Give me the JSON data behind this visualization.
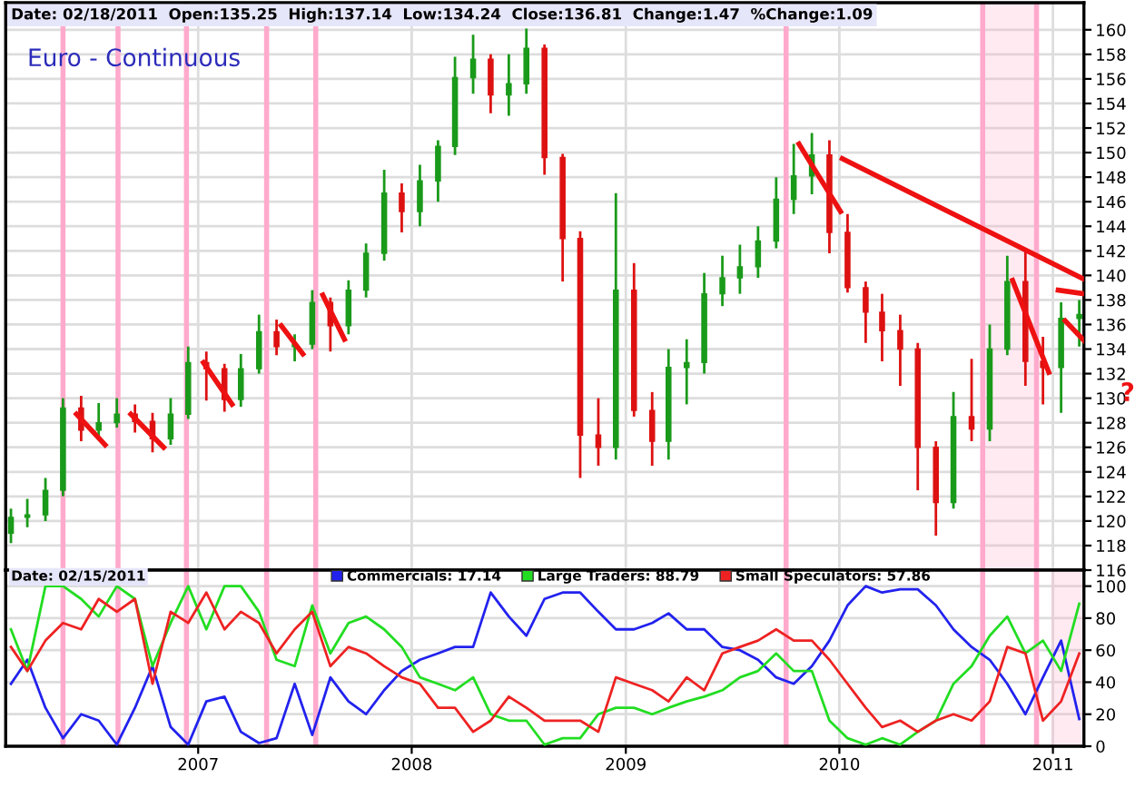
{
  "chart_data": [
    {
      "type": "candlestick",
      "title": "Euro - Continuous",
      "annotations": [
        "Date: 02/18/2011  Open:135.25  High:137.14  Low:134.24  Close:136.81  Change:1.47  %Change:1.09",
        "?"
      ],
      "x": [
        "2006-02-15",
        "2006-03-15",
        "2006-04-15",
        "2006-05-15",
        "2006-06-15",
        "2006-07-15",
        "2006-08-15",
        "2006-09-15",
        "2006-10-15",
        "2006-11-15",
        "2006-12-15",
        "2007-01-15",
        "2007-02-15",
        "2007-03-15",
        "2007-04-15",
        "2007-05-15",
        "2007-06-15",
        "2007-07-15",
        "2007-08-15",
        "2007-09-15",
        "2007-10-15",
        "2007-11-15",
        "2007-12-15",
        "2008-01-15",
        "2008-02-15",
        "2008-03-15",
        "2008-04-15",
        "2008-05-15",
        "2008-06-15",
        "2008-07-15",
        "2008-08-15",
        "2008-09-15",
        "2008-10-15",
        "2008-11-15",
        "2008-12-15",
        "2009-01-15",
        "2009-02-15",
        "2009-03-15",
        "2009-04-15",
        "2009-05-15",
        "2009-06-15",
        "2009-07-15",
        "2009-08-15",
        "2009-09-15",
        "2009-10-15",
        "2009-11-15",
        "2009-12-15",
        "2010-01-15",
        "2010-02-15",
        "2010-03-15",
        "2010-04-15",
        "2010-05-15",
        "2010-06-15",
        "2010-07-15",
        "2010-08-15",
        "2010-09-15",
        "2010-10-15",
        "2010-11-15",
        "2010-12-15",
        "2011-01-15",
        "2011-02-15"
      ],
      "ohlc": [
        [
          119.0,
          121.0,
          118.2,
          120.3
        ],
        [
          120.3,
          121.8,
          119.5,
          120.5
        ],
        [
          120.5,
          123.5,
          120.0,
          122.5
        ],
        [
          122.5,
          130.0,
          122.0,
          129.2
        ],
        [
          129.2,
          130.2,
          126.5,
          127.4
        ],
        [
          127.4,
          129.6,
          126.8,
          128.0
        ],
        [
          128.0,
          130.0,
          127.6,
          128.7
        ],
        [
          128.7,
          129.5,
          127.2,
          128.1
        ],
        [
          128.1,
          128.8,
          125.6,
          126.7
        ],
        [
          126.7,
          130.0,
          126.2,
          128.7
        ],
        [
          128.7,
          134.2,
          128.3,
          132.9
        ],
        [
          132.9,
          133.8,
          129.8,
          132.4
        ],
        [
          132.4,
          132.8,
          128.9,
          129.9
        ],
        [
          129.9,
          133.6,
          129.3,
          132.4
        ],
        [
          132.4,
          136.8,
          132.0,
          135.4
        ],
        [
          135.4,
          136.4,
          133.5,
          134.2
        ],
        [
          134.2,
          135.2,
          133.0,
          134.4
        ],
        [
          134.4,
          138.8,
          134.0,
          137.8
        ],
        [
          137.8,
          138.2,
          133.8,
          135.9
        ],
        [
          135.9,
          139.6,
          135.2,
          138.8
        ],
        [
          138.8,
          142.6,
          138.2,
          141.8
        ],
        [
          141.8,
          148.6,
          141.2,
          146.7
        ],
        [
          146.7,
          147.5,
          143.5,
          145.2
        ],
        [
          145.2,
          149.0,
          144.0,
          147.7
        ],
        [
          147.7,
          151.0,
          146.0,
          150.5
        ],
        [
          150.5,
          157.8,
          149.8,
          156.1
        ],
        [
          156.1,
          159.6,
          154.8,
          157.6
        ],
        [
          157.6,
          158.0,
          153.2,
          154.7
        ],
        [
          154.7,
          158.0,
          153.0,
          155.6
        ],
        [
          155.6,
          160.1,
          154.8,
          158.5
        ],
        [
          158.5,
          158.8,
          148.2,
          149.6
        ],
        [
          149.6,
          149.9,
          139.5,
          143.0
        ],
        [
          143.0,
          143.6,
          123.5,
          127.0
        ],
        [
          127.0,
          130.0,
          124.5,
          126.0
        ],
        [
          126.0,
          146.7,
          125.0,
          138.8
        ],
        [
          138.8,
          141.0,
          128.5,
          129.0
        ],
        [
          129.0,
          130.5,
          124.5,
          126.5
        ],
        [
          126.5,
          134.0,
          125.0,
          132.5
        ],
        [
          132.5,
          134.8,
          129.5,
          132.9
        ],
        [
          132.9,
          140.2,
          132.0,
          138.5
        ],
        [
          138.5,
          141.6,
          137.5,
          139.8
        ],
        [
          139.8,
          142.5,
          138.5,
          140.7
        ],
        [
          140.7,
          144.0,
          139.8,
          142.8
        ],
        [
          142.8,
          148.0,
          142.2,
          146.2
        ],
        [
          146.2,
          150.7,
          145.0,
          148.1
        ],
        [
          148.1,
          151.6,
          146.6,
          149.8
        ],
        [
          149.8,
          151.0,
          141.8,
          143.5
        ],
        [
          143.5,
          145.0,
          138.6,
          139.0
        ],
        [
          139.0,
          139.5,
          134.5,
          137.0
        ],
        [
          137.0,
          138.5,
          133.0,
          135.5
        ],
        [
          135.5,
          136.8,
          131.0,
          134.0
        ],
        [
          134.0,
          134.5,
          122.5,
          126.0
        ],
        [
          126.0,
          126.5,
          118.8,
          121.5
        ],
        [
          121.5,
          130.5,
          121.0,
          128.5
        ],
        [
          128.5,
          133.2,
          126.5,
          127.5
        ],
        [
          127.5,
          136.0,
          126.5,
          134.0
        ],
        [
          134.0,
          141.6,
          133.5,
          139.5
        ],
        [
          139.5,
          142.2,
          131.0,
          133.0
        ],
        [
          133.0,
          135.0,
          129.5,
          132.5
        ],
        [
          132.5,
          137.8,
          128.8,
          136.5
        ],
        [
          136.5,
          138.0,
          134.2,
          136.81
        ]
      ],
      "colors": [
        "#1a9a1a",
        "#1a9a1a",
        "#1a9a1a",
        "#1a9a1a",
        "#dd1111",
        "#1a9a1a",
        "#1a9a1a",
        "#dd1111",
        "#dd1111",
        "#1a9a1a",
        "#1a9a1a",
        "#dd1111",
        "#dd1111",
        "#1a9a1a",
        "#1a9a1a",
        "#dd1111",
        "#1a9a1a",
        "#1a9a1a",
        "#dd1111",
        "#1a9a1a",
        "#1a9a1a",
        "#1a9a1a",
        "#dd1111",
        "#1a9a1a",
        "#1a9a1a",
        "#1a9a1a",
        "#1a9a1a",
        "#dd1111",
        "#1a9a1a",
        "#1a9a1a",
        "#dd1111",
        "#dd1111",
        "#dd1111",
        "#dd1111",
        "#1a9a1a",
        "#dd1111",
        "#dd1111",
        "#1a9a1a",
        "#1a9a1a",
        "#1a9a1a",
        "#1a9a1a",
        "#1a9a1a",
        "#1a9a1a",
        "#1a9a1a",
        "#1a9a1a",
        "#1a9a1a",
        "#dd1111",
        "#dd1111",
        "#dd1111",
        "#dd1111",
        "#dd1111",
        "#dd1111",
        "#dd1111",
        "#1a9a1a",
        "#dd1111",
        "#1a9a1a",
        "#1a9a1a",
        "#dd1111",
        "#dd1111",
        "#1a9a1a",
        "#1a9a1a"
      ],
      "series": [
        {
          "type": "line",
          "color": "#ee1111",
          "x": [
            "2006-06-07",
            "2006-07-26"
          ],
          "values": [
            128.7,
            126.2
          ]
        },
        {
          "type": "line",
          "color": "#ee1111",
          "x": [
            "2006-09-08",
            "2006-11-03"
          ],
          "values": [
            128.7,
            126.0
          ]
        },
        {
          "type": "line",
          "color": "#ee1111",
          "x": [
            "2007-01-10",
            "2007-02-28"
          ],
          "values": [
            132.9,
            129.5
          ]
        },
        {
          "type": "line",
          "color": "#ee1111",
          "x": [
            "2007-05-23",
            "2007-06-29"
          ],
          "values": [
            135.9,
            133.6
          ]
        },
        {
          "type": "line",
          "color": "#ee1111",
          "x": [
            "2007-08-02",
            "2007-09-08"
          ],
          "values": [
            138.4,
            134.8
          ]
        },
        {
          "type": "line",
          "color": "#ee1111",
          "x": [
            "2009-10-24",
            "2010-01-03"
          ],
          "values": [
            150.7,
            145.2
          ]
        },
        {
          "type": "line",
          "color": "#ee1111",
          "x": [
            "2010-01-06",
            "2011-02-23"
          ],
          "values": [
            149.5,
            139.7
          ]
        },
        {
          "type": "line",
          "color": "#ee1111",
          "x": [
            "2010-10-24",
            "2010-12-25"
          ],
          "values": [
            139.6,
            132.1
          ]
        },
        {
          "type": "line",
          "color": "#ee1111",
          "x": [
            "2011-01-10",
            "2011-02-23"
          ],
          "values": [
            138.8,
            138.5
          ]
        },
        {
          "type": "line",
          "color": "#ee1111",
          "x": [
            "2011-01-22",
            "2011-02-23"
          ],
          "values": [
            136.3,
            134.7
          ]
        }
      ],
      "xlim": [
        "2006-02-06",
        "2011-02-23"
      ],
      "xticks": [
        "2007",
        "2008",
        "2009",
        "2010",
        "2011"
      ],
      "ylim": [
        116,
        162.2
      ],
      "yticks": [
        116,
        118,
        120,
        122,
        124,
        126,
        128,
        130,
        132,
        134,
        136,
        138,
        140,
        142,
        144,
        146,
        148,
        150,
        152,
        154,
        156,
        158,
        160
      ],
      "tick_labels": "y",
      "grid": true,
      "ref_lines": [
        {
          "axis": "x",
          "value": "2006-05-15",
          "color": "#ffaacc"
        },
        {
          "axis": "x",
          "value": "2006-08-17",
          "color": "#ffaacc"
        },
        {
          "axis": "x",
          "value": "2006-12-12",
          "color": "#ffaacc"
        },
        {
          "axis": "x",
          "value": "2007-04-28",
          "color": "#ffaacc"
        },
        {
          "axis": "x",
          "value": "2007-07-21",
          "color": "#ffaacc"
        },
        {
          "axis": "x",
          "value": "2009-10-02",
          "color": "#ffaacc"
        },
        {
          "axis": "x",
          "value": "2010-09-03",
          "color": "#ffaacc"
        },
        {
          "axis": "x",
          "value": "2010-12-04",
          "color": "#ffaacc"
        }
      ],
      "bands": [
        {
          "axis": "x",
          "from": "2010-09-03",
          "to": "2010-12-01",
          "color": "#ffaacc"
        }
      ]
    },
    {
      "type": "line",
      "annotations": [
        "Date: 02/15/2011"
      ],
      "x": [
        "2006-02-15",
        "2006-03-15",
        "2006-04-15",
        "2006-05-15",
        "2006-06-15",
        "2006-07-15",
        "2006-08-15",
        "2006-09-15",
        "2006-10-15",
        "2006-11-15",
        "2006-12-15",
        "2007-01-15",
        "2007-02-15",
        "2007-03-15",
        "2007-04-15",
        "2007-05-15",
        "2007-06-15",
        "2007-07-15",
        "2007-08-15",
        "2007-09-15",
        "2007-10-15",
        "2007-11-15",
        "2007-12-15",
        "2008-01-15",
        "2008-02-15",
        "2008-03-15",
        "2008-04-15",
        "2008-05-15",
        "2008-06-15",
        "2008-07-15",
        "2008-08-15",
        "2008-09-15",
        "2008-10-15",
        "2008-11-15",
        "2008-12-15",
        "2009-01-15",
        "2009-02-15",
        "2009-03-15",
        "2009-04-15",
        "2009-05-15",
        "2009-06-15",
        "2009-07-15",
        "2009-08-15",
        "2009-09-15",
        "2009-10-15",
        "2009-11-15",
        "2009-12-15",
        "2010-01-15",
        "2010-02-15",
        "2010-03-15",
        "2010-04-15",
        "2010-05-15",
        "2010-06-15",
        "2010-07-15",
        "2010-08-15",
        "2010-09-15",
        "2010-10-15",
        "2010-11-15",
        "2010-12-15",
        "2011-01-15",
        "2011-02-15"
      ],
      "series": [
        {
          "name": "Commercials: 17.14",
          "color": "#2222ee",
          "values": [
            39,
            54,
            24,
            5,
            20,
            16,
            1,
            24,
            50,
            12,
            1,
            28,
            31,
            9,
            2,
            5,
            39,
            7,
            43,
            28,
            20,
            35,
            47,
            54,
            58,
            62,
            62,
            96,
            81,
            69,
            92,
            96,
            96,
            84,
            73,
            73,
            77,
            83,
            73,
            73,
            62,
            60,
            54,
            43,
            39,
            50,
            66,
            88,
            100,
            96,
            98,
            98,
            88,
            73,
            62,
            54,
            39,
            20,
            43,
            66,
            17
          ]
        },
        {
          "name": "Large Traders: 88.79",
          "color": "#22dd22",
          "values": [
            73,
            47,
            100,
            100,
            92,
            81,
            100,
            92,
            50,
            77,
            100,
            73,
            100,
            100,
            84,
            54,
            50,
            88,
            58,
            77,
            81,
            73,
            62,
            43,
            39,
            35,
            43,
            20,
            16,
            16,
            1,
            5,
            5,
            20,
            24,
            24,
            20,
            24,
            28,
            31,
            35,
            43,
            47,
            58,
            47,
            47,
            16,
            5,
            1,
            5,
            1,
            9,
            16,
            39,
            50,
            69,
            81,
            58,
            66,
            47,
            89
          ]
        },
        {
          "name": "Small Speculators: 57.86",
          "color": "#ee2222",
          "values": [
            62,
            47,
            66,
            77,
            73,
            92,
            84,
            92,
            39,
            84,
            77,
            96,
            73,
            84,
            77,
            58,
            73,
            84,
            50,
            62,
            58,
            50,
            43,
            39,
            24,
            24,
            9,
            16,
            31,
            24,
            16,
            16,
            16,
            9,
            43,
            39,
            35,
            28,
            43,
            35,
            58,
            62,
            66,
            73,
            66,
            66,
            54,
            39,
            24,
            12,
            16,
            9,
            16,
            20,
            16,
            28,
            62,
            58,
            16,
            28,
            58
          ]
        }
      ],
      "xlim": [
        "2006-02-06",
        "2011-02-23"
      ],
      "xticks": [
        "2007",
        "2008",
        "2009",
        "2010",
        "2011"
      ],
      "ylim": [
        0,
        110
      ],
      "yticks": [
        0,
        20,
        40,
        60,
        80,
        100
      ],
      "grid": true,
      "legend": "top",
      "ref_lines": [
        {
          "axis": "x",
          "value": "2006-05-15",
          "color": "#ffaacc"
        },
        {
          "axis": "x",
          "value": "2006-08-17",
          "color": "#ffaacc"
        },
        {
          "axis": "x",
          "value": "2006-12-12",
          "color": "#ffaacc"
        },
        {
          "axis": "x",
          "value": "2007-04-28",
          "color": "#ffaacc"
        },
        {
          "axis": "x",
          "value": "2007-07-21",
          "color": "#ffaacc"
        },
        {
          "axis": "x",
          "value": "2009-10-02",
          "color": "#ffaacc"
        },
        {
          "axis": "x",
          "value": "2010-09-03",
          "color": "#ffaacc"
        },
        {
          "axis": "x",
          "value": "2010-12-04",
          "color": "#ffaacc"
        }
      ],
      "bands": [
        {
          "axis": "x",
          "from": "2011-01-01",
          "to": "2011-02-18",
          "color": "#ffaacc"
        }
      ]
    }
  ]
}
